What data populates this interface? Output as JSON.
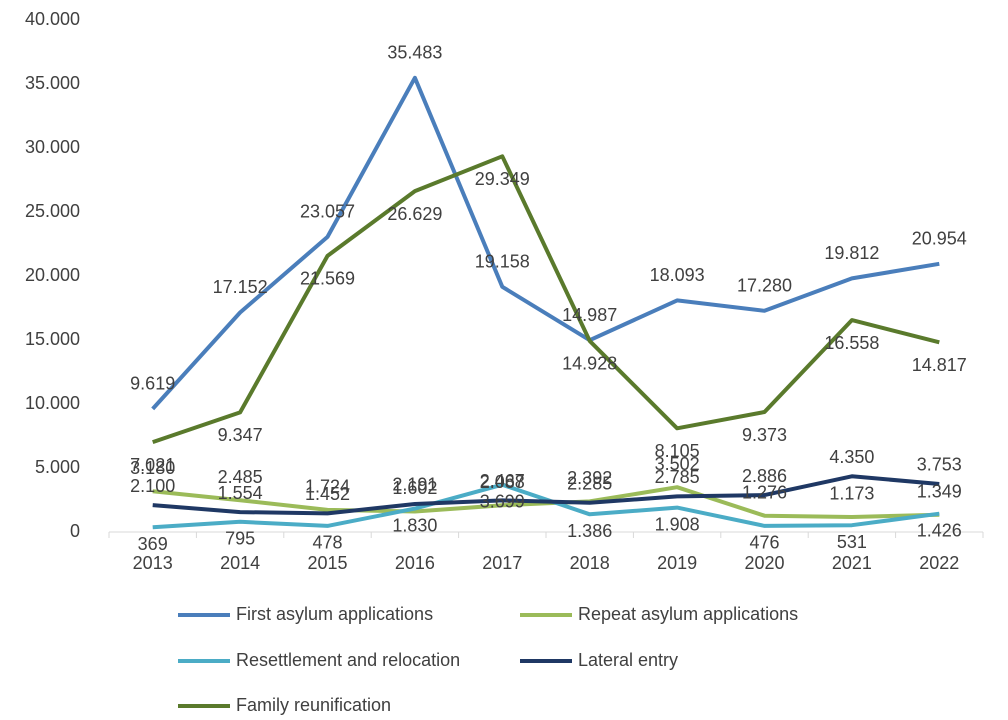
{
  "chart_data": {
    "type": "line",
    "categories": [
      "2013",
      "2014",
      "2015",
      "2016",
      "2017",
      "2018",
      "2019",
      "2020",
      "2021",
      "2022"
    ],
    "series": [
      {
        "name": "First asylum applications",
        "color": "#4a7ebb",
        "values": [
          9619,
          17152,
          23057,
          35483,
          19158,
          14987,
          18093,
          17280,
          19812,
          20954
        ],
        "value_labels": [
          "9.619",
          "17.152",
          "23.057",
          "35.483",
          "19.158",
          "14.987",
          "18.093",
          "17.280",
          "19.812",
          "20.954"
        ]
      },
      {
        "name": "Repeat asylum applications",
        "color": "#9bbb59",
        "values": [
          3180,
          2485,
          1724,
          1602,
          2088,
          2392,
          3502,
          1276,
          1173,
          1349
        ],
        "value_labels": [
          "3.180",
          "2.485",
          "1.724",
          "1.602",
          "2.088",
          "2.392",
          "3.502",
          "1.276",
          "1.173",
          "1.349"
        ]
      },
      {
        "name": "Resettlement and relocation",
        "color": "#4bacc6",
        "values": [
          369,
          795,
          478,
          1830,
          3699,
          1386,
          1908,
          476,
          531,
          1426
        ],
        "value_labels": [
          "369",
          "795",
          "478",
          "1.830",
          "3.699",
          "1.386",
          "1.908",
          "476",
          "531",
          "1.426"
        ]
      },
      {
        "name": "Lateral entry",
        "color": "#1f3864",
        "values": [
          2100,
          1554,
          1452,
          2191,
          2467,
          2285,
          2785,
          2886,
          4350,
          3753
        ],
        "value_labels": [
          "2.100",
          "1.554",
          "1.452",
          "2.191",
          "2.467",
          "2.285",
          "2.785",
          "2.886",
          "4.350",
          "3.753"
        ]
      },
      {
        "name": "Family reunification",
        "color": "#5a7a2c",
        "values": [
          7021,
          9347,
          21569,
          26629,
          29349,
          14928,
          8105,
          9373,
          16558,
          14817
        ],
        "value_labels": [
          "7.021",
          "9.347",
          "21.569",
          "26.629",
          "29.349",
          "14.928",
          "8.105",
          "9.373",
          "16.558",
          "14.817"
        ]
      }
    ],
    "ylim": [
      0,
      40000
    ],
    "yticks": [
      0,
      {
        "value": 5000,
        "label": "5.000"
      },
      {
        "value": 10000,
        "label": "10.000"
      },
      {
        "value": 15000,
        "label": "15.000"
      },
      {
        "value": 20000,
        "label": "20.000"
      },
      {
        "value": 25000,
        "label": "25.000"
      },
      {
        "value": 30000,
        "label": "30.000"
      },
      {
        "value": 35000,
        "label": "35.000"
      },
      {
        "value": 40000,
        "label": "40.000"
      }
    ],
    "grid": false,
    "legend": "bottom"
  }
}
